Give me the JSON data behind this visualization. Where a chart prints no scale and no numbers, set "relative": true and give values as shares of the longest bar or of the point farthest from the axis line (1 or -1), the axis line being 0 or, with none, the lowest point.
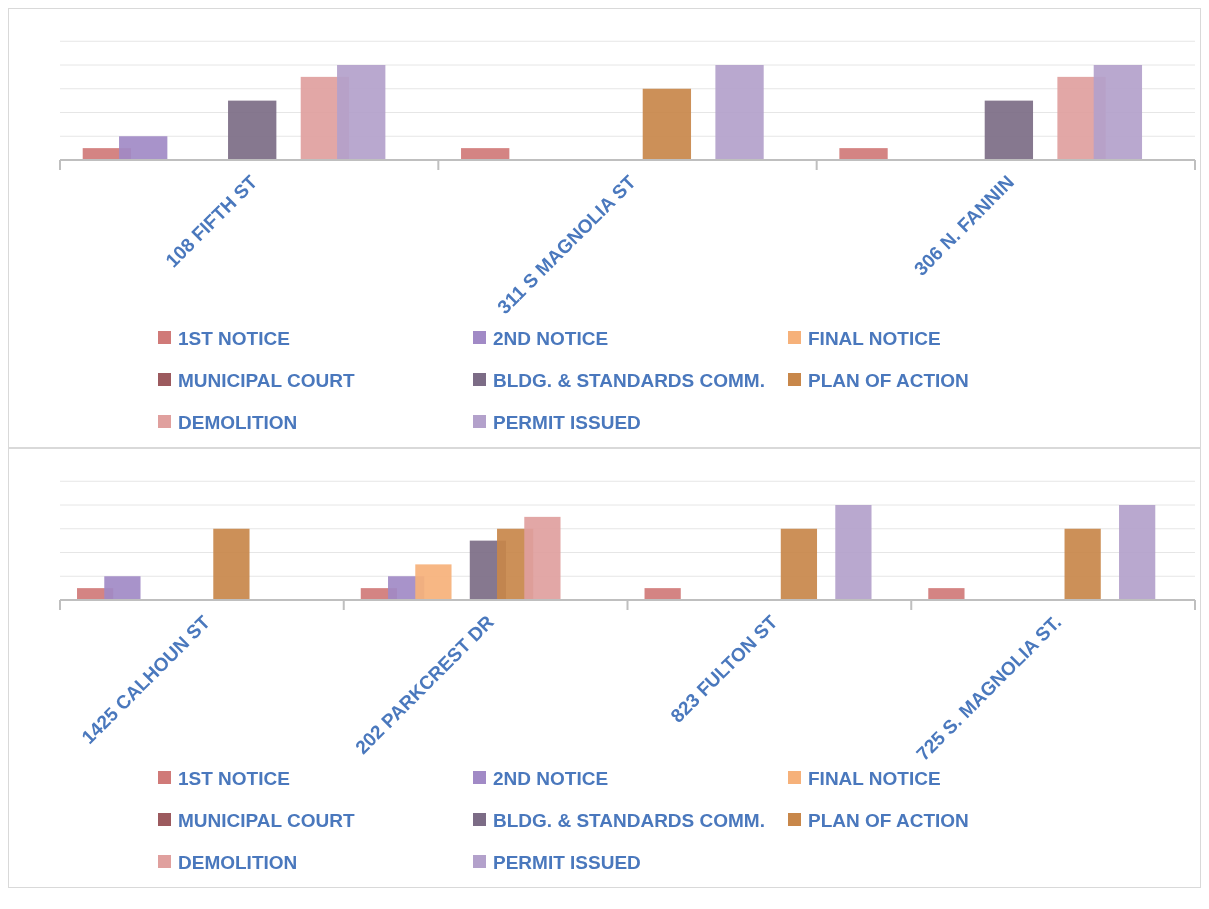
{
  "chart_data": [
    {
      "type": "bar",
      "relative": true,
      "grid": "y",
      "legend": "bottom",
      "categories": [
        "108 FIFTH ST",
        "311 S MAGNOLIA ST",
        "306 N. FANNIN"
      ],
      "series": [
        {
          "name": "1ST NOTICE",
          "color": "#d07a78",
          "values": [
            0.125,
            0.125,
            0.125
          ]
        },
        {
          "name": "2ND NOTICE",
          "color": "#a18ac6",
          "values": [
            0.25,
            0,
            0
          ]
        },
        {
          "name": "FINAL NOTICE",
          "color": "#f6b17a",
          "values": [
            0,
            0,
            0
          ]
        },
        {
          "name": "MUNICIPAL COURT",
          "color": "#9c5a5e",
          "values": [
            0,
            0,
            0
          ]
        },
        {
          "name": "BLDG. & STANDARDS COMM.",
          "color": "#7c6c86",
          "values": [
            0.625,
            0,
            0.625
          ]
        },
        {
          "name": "PLAN OF ACTION",
          "color": "#c8874a",
          "values": [
            0,
            0.75,
            0
          ]
        },
        {
          "name": "DEMOLITION",
          "color": "#e0a09e",
          "values": [
            0.875,
            0,
            0.875
          ]
        },
        {
          "name": "PERMIT ISSUED",
          "color": "#b3a1cb",
          "values": [
            1,
            1,
            1
          ]
        }
      ]
    },
    {
      "type": "bar",
      "relative": true,
      "grid": "y",
      "legend": "bottom",
      "categories": [
        "1425 CALHOUN ST",
        "202 PARKCREST DR",
        "823 FULTON ST",
        "725 S. MAGNOLIA ST."
      ],
      "series": [
        {
          "name": "1ST NOTICE",
          "color": "#d07a78",
          "values": [
            0.125,
            0.125,
            0.125,
            0.125
          ]
        },
        {
          "name": "2ND NOTICE",
          "color": "#a18ac6",
          "values": [
            0.25,
            0.25,
            0,
            0
          ]
        },
        {
          "name": "FINAL NOTICE",
          "color": "#f6b17a",
          "values": [
            0,
            0.375,
            0,
            0
          ]
        },
        {
          "name": "MUNICIPAL COURT",
          "color": "#9c5a5e",
          "values": [
            0,
            0,
            0,
            0
          ]
        },
        {
          "name": "BLDG. & STANDARDS COMM.",
          "color": "#7c6c86",
          "values": [
            0,
            0.625,
            0,
            0
          ]
        },
        {
          "name": "PLAN OF ACTION",
          "color": "#c8874a",
          "values": [
            0.75,
            0.75,
            0.75,
            0.75
          ]
        },
        {
          "name": "DEMOLITION",
          "color": "#e0a09e",
          "values": [
            0,
            0.875,
            0,
            0
          ]
        },
        {
          "name": "PERMIT ISSUED",
          "color": "#b3a1cb",
          "values": [
            0,
            0,
            1,
            1
          ]
        }
      ]
    }
  ]
}
